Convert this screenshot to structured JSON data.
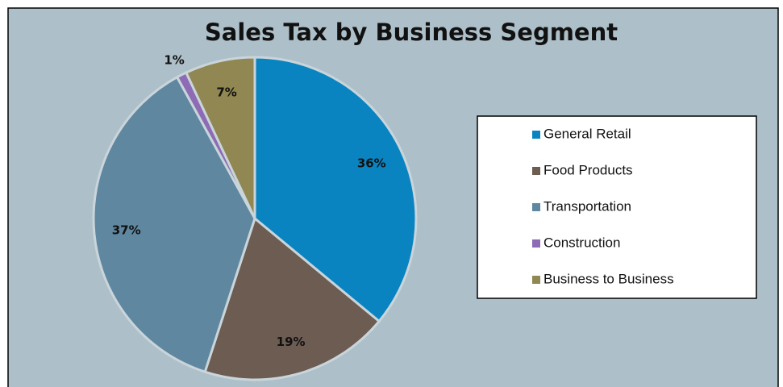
{
  "chart_data": {
    "type": "pie",
    "title": "Sales Tax by Business Segment",
    "categories": [
      "General Retail",
      "Food Products",
      "Transportation",
      "Construction",
      "Business to Business"
    ],
    "values": [
      36,
      19,
      37,
      1,
      7
    ],
    "value_labels": [
      "36%",
      "19%",
      "37%",
      "1%",
      "7%"
    ],
    "colors": [
      "#0a84c1",
      "#6c5c52",
      "#5f87a0",
      "#8e6bb5",
      "#908752"
    ],
    "legend": "right"
  }
}
